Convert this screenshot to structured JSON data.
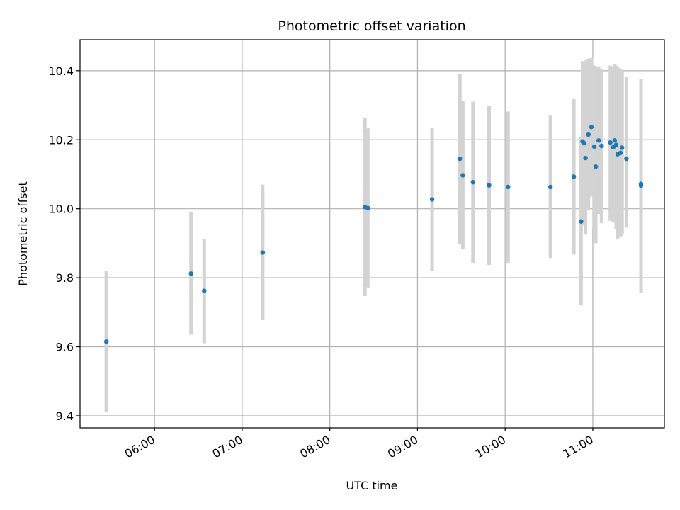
{
  "chart_data": {
    "type": "scatter",
    "title": "Photometric offset variation",
    "xlabel": "UTC time",
    "ylabel": "Photometric offset",
    "x_ticks": [
      "06:00",
      "07:00",
      "08:00",
      "09:00",
      "10:00",
      "11:00"
    ],
    "y_ticks": [
      "9.4",
      "9.6",
      "9.8",
      "10.0",
      "10.2",
      "10.4"
    ],
    "ylim": [
      9.365,
      10.49
    ],
    "xlim": [
      "05:09",
      "11:49"
    ],
    "grid": true,
    "marker_color": "#1f77b4",
    "errorbar_color": "#d3d3d3",
    "points": [
      {
        "time": "05:27",
        "value": 9.615,
        "low": 9.41,
        "high": 9.82
      },
      {
        "time": "06:25",
        "value": 9.812,
        "low": 9.635,
        "high": 9.99
      },
      {
        "time": "06:34",
        "value": 9.762,
        "low": 9.61,
        "high": 9.912
      },
      {
        "time": "07:14",
        "value": 9.873,
        "low": 9.677,
        "high": 10.07
      },
      {
        "time": "08:24",
        "value": 10.005,
        "low": 9.747,
        "high": 10.263
      },
      {
        "time": "08:26",
        "value": 10.002,
        "low": 9.772,
        "high": 10.233
      },
      {
        "time": "09:10",
        "value": 10.027,
        "low": 9.82,
        "high": 10.235
      },
      {
        "time": "09:29",
        "value": 10.145,
        "low": 9.898,
        "high": 10.39
      },
      {
        "time": "09:31",
        "value": 10.097,
        "low": 9.882,
        "high": 10.312
      },
      {
        "time": "09:38",
        "value": 10.077,
        "low": 9.843,
        "high": 10.31
      },
      {
        "time": "09:49",
        "value": 10.068,
        "low": 9.837,
        "high": 10.298
      },
      {
        "time": "10:02",
        "value": 10.063,
        "low": 9.842,
        "high": 10.282
      },
      {
        "time": "10:31",
        "value": 10.063,
        "low": 9.857,
        "high": 10.27
      },
      {
        "time": "10:47",
        "value": 10.093,
        "low": 9.867,
        "high": 10.318
      },
      {
        "time": "10:52",
        "value": 9.963,
        "low": 9.72,
        "high": 10.207
      },
      {
        "time": "10:53",
        "value": 10.195,
        "low": 9.962,
        "high": 10.428
      },
      {
        "time": "10:54",
        "value": 10.19,
        "low": 9.952,
        "high": 10.427
      },
      {
        "time": "10:55",
        "value": 10.147,
        "low": 9.925,
        "high": 10.43
      },
      {
        "time": "10:57",
        "value": 10.215,
        "low": 9.995,
        "high": 10.435
      },
      {
        "time": "10:59",
        "value": 10.237,
        "low": 10.035,
        "high": 10.437
      },
      {
        "time": "11:01",
        "value": 10.18,
        "low": 9.945,
        "high": 10.415
      },
      {
        "time": "11:02",
        "value": 10.122,
        "low": 9.9,
        "high": 10.412
      },
      {
        "time": "11:04",
        "value": 10.198,
        "low": 9.985,
        "high": 10.41
      },
      {
        "time": "11:06",
        "value": 10.182,
        "low": 9.958,
        "high": 10.405
      },
      {
        "time": "11:12",
        "value": 10.192,
        "low": 9.965,
        "high": 10.415
      },
      {
        "time": "11:14",
        "value": 10.178,
        "low": 9.96,
        "high": 10.41
      },
      {
        "time": "11:15",
        "value": 10.198,
        "low": 9.97,
        "high": 10.42
      },
      {
        "time": "11:16",
        "value": 10.185,
        "low": 9.94,
        "high": 10.415
      },
      {
        "time": "11:17",
        "value": 10.158,
        "low": 9.912,
        "high": 10.41
      },
      {
        "time": "11:19",
        "value": 10.162,
        "low": 9.918,
        "high": 10.405
      },
      {
        "time": "11:20",
        "value": 10.177,
        "low": 9.925,
        "high": 10.4
      },
      {
        "time": "11:23",
        "value": 10.145,
        "low": 9.945,
        "high": 10.382
      },
      {
        "time": "11:33",
        "value": 10.072,
        "low": 9.755,
        "high": 10.375
      },
      {
        "time": "11:33",
        "value": 10.067,
        "low": 9.755,
        "high": 10.375
      }
    ]
  }
}
